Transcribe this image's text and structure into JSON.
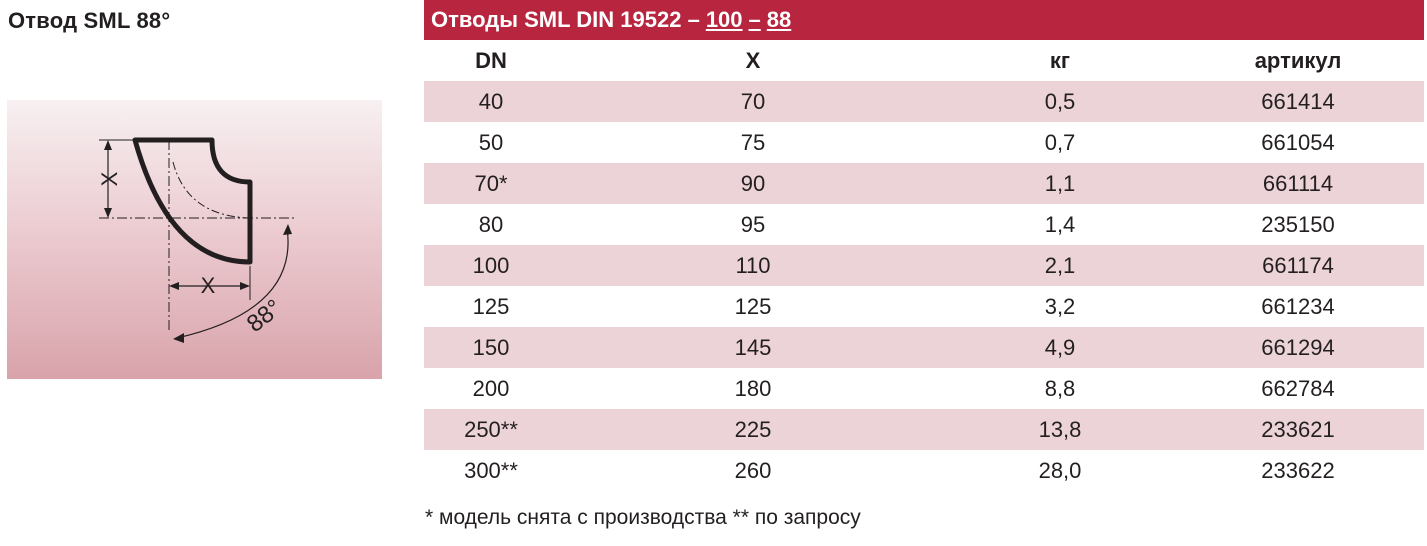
{
  "left": {
    "title": "Отвод SML 88°",
    "diagram": {
      "dim_x_vertical": "X",
      "dim_x_horizontal": "X",
      "angle": "88°"
    }
  },
  "table": {
    "header_main": "Отводы SML DIN 19522 –",
    "header_a": "100",
    "header_sep": "–",
    "header_b": "88",
    "columns": [
      "DN",
      "X",
      "кг",
      "артикул"
    ],
    "rows": [
      {
        "dn": "40",
        "x": "70",
        "kg": "0,5",
        "art": "661414"
      },
      {
        "dn": "50",
        "x": "75",
        "kg": "0,7",
        "art": "661054"
      },
      {
        "dn": "70*",
        "x": "90",
        "kg": "1,1",
        "art": "661114"
      },
      {
        "dn": "80",
        "x": "95",
        "kg": "1,4",
        "art": "235150"
      },
      {
        "dn": "100",
        "x": "110",
        "kg": "2,1",
        "art": "661174"
      },
      {
        "dn": "125",
        "x": "125",
        "kg": "3,2",
        "art": "661234"
      },
      {
        "dn": "150",
        "x": "145",
        "kg": "4,9",
        "art": "661294"
      },
      {
        "dn": "200",
        "x": "180",
        "kg": "8,8",
        "art": "662784"
      },
      {
        "dn": "250**",
        "x": "225",
        "kg": "13,8",
        "art": "233621"
      },
      {
        "dn": "300**",
        "x": "260",
        "kg": "28,0",
        "art": "233622"
      }
    ]
  },
  "footnote": "* модель снята с производства  ** по запросу",
  "colors": {
    "header_bg": "#b8253f",
    "row_shade": "#ecd3d7",
    "text": "#231f20"
  }
}
